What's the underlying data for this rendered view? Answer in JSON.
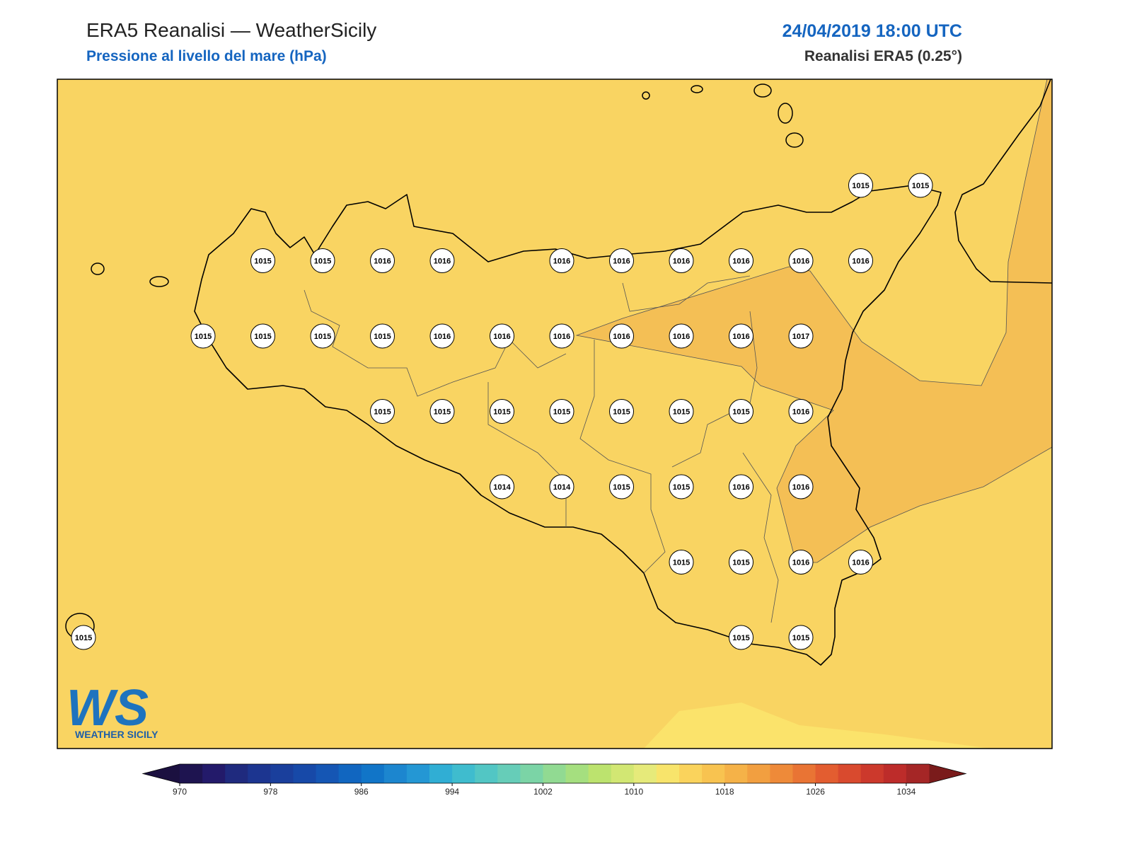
{
  "header": {
    "title": "ERA5 Reanalisi — WeatherSicily",
    "subtitle": "Pressione al livello del mare (hPa)",
    "datetime": "24/04/2019 18:00 UTC",
    "source": "Reanalisi ERA5 (0.25°)"
  },
  "stations": {
    "rows": [
      [
        null,
        null,
        null,
        null,
        null,
        null,
        null,
        null,
        null,
        null,
        null,
        null,
        null,
        1015,
        1015
      ],
      [
        null,
        null,
        null,
        1015,
        1015,
        1016,
        1016,
        null,
        1016,
        1016,
        1016,
        1016,
        1016,
        1016,
        null
      ],
      [
        null,
        null,
        1015,
        1015,
        1015,
        1015,
        1016,
        1016,
        1016,
        1016,
        1016,
        1016,
        1017,
        null,
        null
      ],
      [
        null,
        null,
        null,
        null,
        null,
        1015,
        1015,
        1015,
        1015,
        1015,
        1015,
        1015,
        1016,
        null,
        null
      ],
      [
        null,
        null,
        null,
        null,
        null,
        null,
        null,
        1014,
        1014,
        1015,
        1015,
        1016,
        1016,
        null,
        null
      ],
      [
        null,
        null,
        null,
        null,
        null,
        null,
        null,
        null,
        null,
        null,
        1015,
        1015,
        1016,
        1016,
        null
      ],
      [
        1015,
        null,
        null,
        null,
        null,
        null,
        null,
        null,
        null,
        null,
        null,
        1015,
        1015,
        null,
        null
      ]
    ]
  },
  "colorbar": {
    "lim": [
      970,
      1036
    ],
    "ticks": [
      970,
      978,
      986,
      994,
      1002,
      1010,
      1018,
      1026,
      1034
    ],
    "colors": [
      "#1e1450",
      "#231a6a",
      "#1f2a7e",
      "#1c3590",
      "#1a3f9c",
      "#1749a8",
      "#1556b4",
      "#1166c0",
      "#1175c8",
      "#1c86cf",
      "#2497d4",
      "#30aed4",
      "#3fbcce",
      "#52c6c4",
      "#66cdb8",
      "#7bd4a6",
      "#91da92",
      "#a5df7f",
      "#bce36e",
      "#d2e773",
      "#e6ea7a",
      "#f8e46b",
      "#fad35c",
      "#f8c350",
      "#f5b248",
      "#f29f40",
      "#ee8a39",
      "#e97434",
      "#e35d30",
      "#d94a2e",
      "#cc392c",
      "#bd2c2a",
      "#a52626"
    ],
    "extend_colors": [
      "#1b1040",
      "#7a1b1b"
    ]
  },
  "logo": {
    "initials": "WS",
    "name": "WEATHER SICILY"
  }
}
